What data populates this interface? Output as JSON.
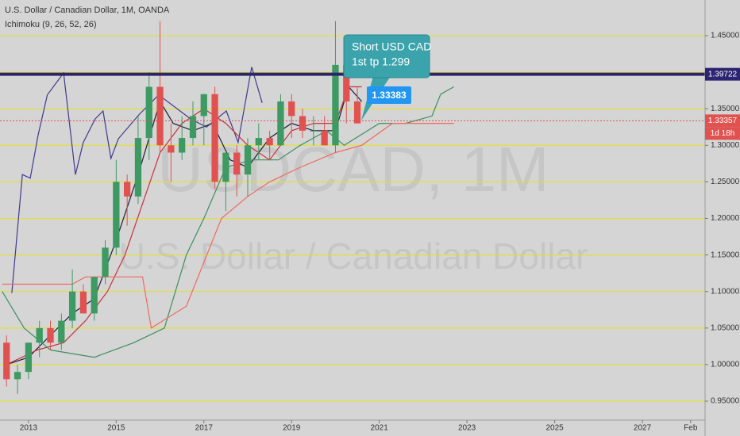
{
  "chart_data": {
    "type": "candlestick",
    "title": "U.S. Dollar / Canadian Dollar, 1M, OANDA",
    "indicator": "Ichimoku (9, 26, 52, 26)",
    "watermark": [
      "USDCAD, 1M",
      "U.S. Dollar / Canadian Dollar"
    ],
    "x": [
      2012.5,
      2012.75,
      2013.0,
      2013.25,
      2013.5,
      2013.75,
      2014.0,
      2014.25,
      2014.5,
      2014.75,
      2015.0,
      2015.25,
      2015.5,
      2015.75,
      2016.0,
      2016.25,
      2016.5,
      2016.75,
      2017.0,
      2017.25,
      2017.5,
      2017.75,
      2018.0,
      2018.25,
      2018.5,
      2018.75,
      2019.0,
      2019.25,
      2019.5,
      2019.75,
      2020.0,
      2020.25,
      2020.5
    ],
    "open": [
      1.03,
      0.98,
      0.99,
      1.03,
      1.05,
      1.03,
      1.06,
      1.1,
      1.07,
      1.12,
      1.16,
      1.25,
      1.23,
      1.31,
      1.38,
      1.3,
      1.29,
      1.31,
      1.34,
      1.37,
      1.25,
      1.29,
      1.26,
      1.3,
      1.31,
      1.3,
      1.36,
      1.34,
      1.32,
      1.32,
      1.3,
      1.41,
      1.36
    ],
    "high": [
      1.04,
      1.0,
      1.03,
      1.06,
      1.06,
      1.07,
      1.13,
      1.11,
      1.12,
      1.17,
      1.28,
      1.26,
      1.34,
      1.4,
      1.47,
      1.33,
      1.34,
      1.36,
      1.37,
      1.38,
      1.29,
      1.3,
      1.31,
      1.33,
      1.32,
      1.37,
      1.37,
      1.35,
      1.34,
      1.34,
      1.47,
      1.42,
      1.38
    ],
    "low": [
      0.97,
      0.96,
      0.98,
      1.01,
      1.02,
      1.02,
      1.05,
      1.07,
      1.06,
      1.11,
      1.15,
      1.19,
      1.22,
      1.28,
      1.29,
      1.25,
      1.28,
      1.3,
      1.3,
      1.24,
      1.21,
      1.23,
      1.23,
      1.28,
      1.28,
      1.3,
      1.31,
      1.31,
      1.3,
      1.3,
      1.29,
      1.33,
      1.33
    ],
    "close": [
      0.98,
      0.99,
      1.03,
      1.05,
      1.03,
      1.06,
      1.1,
      1.07,
      1.12,
      1.16,
      1.25,
      1.23,
      1.31,
      1.38,
      1.3,
      1.29,
      1.31,
      1.34,
      1.37,
      1.25,
      1.29,
      1.26,
      1.3,
      1.31,
      1.3,
      1.36,
      1.34,
      1.32,
      1.32,
      1.3,
      1.41,
      1.36,
      1.33
    ],
    "up_color": "#3d9a62",
    "down_color": "#e0524f",
    "series": [
      {
        "color": "#3f3a8c",
        "x": [
          2012.62,
          2012.86,
          2013.04,
          2013.22,
          2013.43,
          2013.8,
          2014.07,
          2014.25,
          2014.52,
          2014.7,
          2014.88,
          2015.05,
          2015.52,
          2015.97,
          2016.7,
          2017.06,
          2017.51,
          2017.78,
          2018.09,
          2018.33
        ],
        "values": [
          1.098,
          1.26,
          1.255,
          1.314,
          1.369,
          1.399,
          1.26,
          1.304,
          1.336,
          1.347,
          1.282,
          1.309,
          1.342,
          1.369,
          1.336,
          1.325,
          1.347,
          1.304,
          1.407,
          1.358
        ]
      },
      {
        "color": "#1c1c3c",
        "x": [
          2012.5,
          2013.0,
          2013.5,
          2014.0,
          2014.5,
          2015.0,
          2015.5,
          2016.0,
          2016.3,
          2016.75,
          2017.2,
          2017.6,
          2018.0,
          2018.5,
          2019.0,
          2019.5,
          2020.0,
          2020.3,
          2020.6
        ],
        "values": [
          1.0,
          1.01,
          1.04,
          1.07,
          1.09,
          1.17,
          1.26,
          1.36,
          1.33,
          1.32,
          1.33,
          1.28,
          1.27,
          1.31,
          1.33,
          1.32,
          1.32,
          1.38,
          1.36
        ]
      },
      {
        "color": "#c8323a",
        "x": [
          2012.5,
          2013.2,
          2013.8,
          2014.3,
          2014.8,
          2015.2,
          2015.6,
          2016.0,
          2016.5,
          2017.0,
          2017.5,
          2018.0,
          2018.5,
          2019.0,
          2019.5,
          2020.0,
          2020.3,
          2020.6
        ],
        "values": [
          1.0,
          1.02,
          1.03,
          1.06,
          1.1,
          1.15,
          1.22,
          1.29,
          1.33,
          1.35,
          1.33,
          1.3,
          1.28,
          1.32,
          1.33,
          1.33,
          1.38,
          1.38
        ]
      },
      {
        "color": "#3f8f5f",
        "x": [
          2012.4,
          2012.9,
          2013.5,
          2014.5,
          2015.4,
          2016.1,
          2016.6,
          2017.0,
          2017.5,
          2018.1,
          2018.7,
          2019.2,
          2019.8,
          2020.2,
          2021.0,
          2021.6,
          2022.2,
          2022.4,
          2022.7
        ],
        "values": [
          1.1,
          1.05,
          1.02,
          1.01,
          1.03,
          1.05,
          1.15,
          1.2,
          1.27,
          1.28,
          1.28,
          1.3,
          1.32,
          1.3,
          1.33,
          1.33,
          1.34,
          1.37,
          1.38
        ]
      },
      {
        "color": "#ef6a60",
        "x": [
          2012.4,
          2014.0,
          2014.3,
          2015.0,
          2015.6,
          2015.8,
          2016.6,
          2017.4,
          2018.0,
          2018.5,
          2019.2,
          2020.0,
          2020.6,
          2021.3,
          2021.7,
          2022.0,
          2022.7
        ],
        "values": [
          1.11,
          1.11,
          1.12,
          1.12,
          1.12,
          1.05,
          1.08,
          1.2,
          1.23,
          1.25,
          1.27,
          1.29,
          1.3,
          1.33,
          1.33,
          1.33,
          1.33
        ]
      }
    ],
    "hlines": [
      {
        "value": 1.39722,
        "color": "#2b2470"
      },
      {
        "value": 1.33357,
        "color": "#e0524f"
      }
    ],
    "countdown": "1d 18h",
    "annotations": [
      "Short USD CAD",
      "1st tp 1.299",
      "1.33383"
    ],
    "xlim": [
      2012.35,
      2028.43
    ],
    "xticks": [
      2013,
      2015,
      2017,
      2019,
      2021,
      2023,
      2025,
      2027,
      {
        "value": 2028.1,
        "label": "Feb"
      }
    ],
    "ylim": [
      0.924,
      1.4988
    ],
    "yticks": [
      {
        "value": 0.95,
        "label": "0.95000"
      },
      {
        "value": 1.0,
        "label": "1.00000"
      },
      {
        "value": 1.05,
        "label": "1.05000"
      },
      {
        "value": 1.1,
        "label": "1.10000"
      },
      {
        "value": 1.15,
        "label": "1.15000"
      },
      {
        "value": 1.2,
        "label": "1.20000"
      },
      {
        "value": 1.25,
        "label": "1.25000"
      },
      {
        "value": 1.3,
        "label": "1.30000"
      },
      {
        "value": 1.35,
        "label": "1.35000"
      },
      {
        "value": 1.4,
        "label": "1.40000"
      },
      {
        "value": 1.45,
        "label": "1.45000"
      }
    ],
    "grid": true,
    "grid_color": "#e8e21a"
  }
}
